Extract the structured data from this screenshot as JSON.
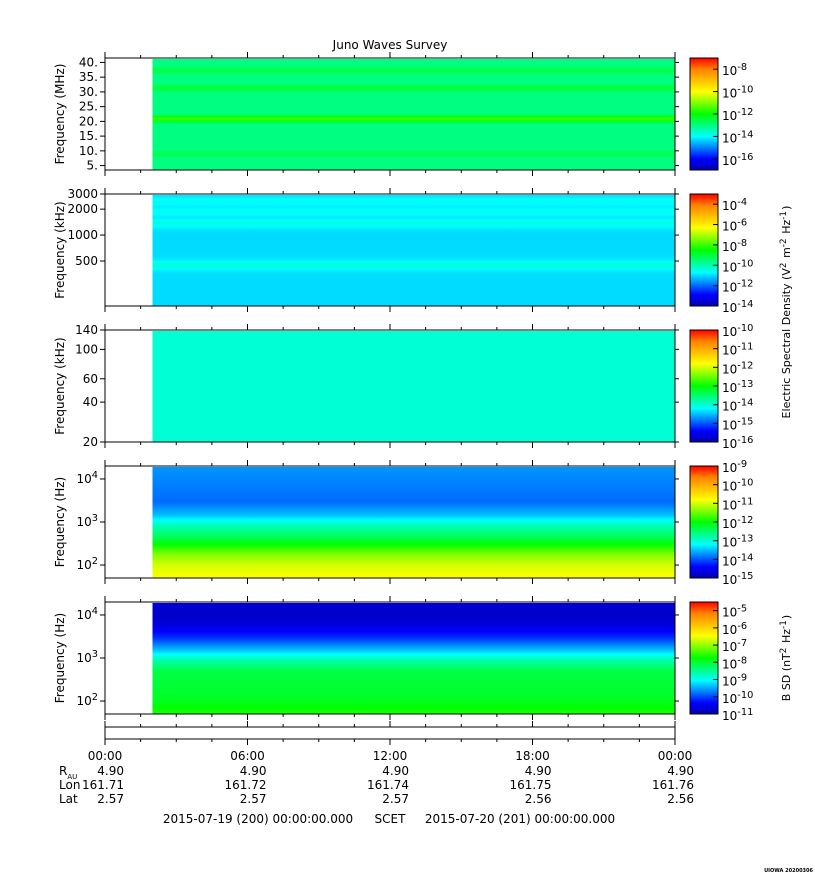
{
  "title": "Juno Waves Survey",
  "colors": {
    "colormap": [
      "#0000b0",
      "#0000ff",
      "#0080ff",
      "#00ffff",
      "#00ff80",
      "#00ff00",
      "#80ff00",
      "#ffff00",
      "#ffc000",
      "#ff8000",
      "#ff0000"
    ]
  },
  "chart_data": [
    {
      "type": "heatmap",
      "name": "panel-1",
      "ylabel": "Frequency (MHz)",
      "yscale": "linear",
      "ylim": [
        3.5,
        41.5
      ],
      "yticks": [
        5,
        10,
        15,
        20,
        25,
        30,
        35,
        40
      ],
      "ytick_labels": [
        "5.",
        "10.",
        "15.",
        "20.",
        "25.",
        "30.",
        "35.",
        "40."
      ],
      "data_start_hours": 2.0,
      "base_level": -13,
      "bands": [
        {
          "y": 21.0,
          "level": -11.5
        },
        {
          "y": 31.5,
          "level": -12.4
        },
        {
          "y": 37.5,
          "level": -12.5
        },
        {
          "y": 9.0,
          "level": -12.6
        }
      ],
      "colorbar": {
        "labels": [
          "10^-8",
          "10^-10",
          "10^-12",
          "10^-14",
          "10^-16"
        ],
        "exponents": [
          -8,
          -10,
          -12,
          -14,
          -16
        ],
        "range": [
          -17,
          -7
        ]
      }
    },
    {
      "type": "heatmap",
      "name": "panel-2",
      "ylabel": "Frequency (kHz)",
      "yscale": "log",
      "ylim": [
        150,
        3000
      ],
      "yticks": [
        500,
        1000,
        2000,
        3000
      ],
      "ytick_labels": [
        "500",
        "1000",
        "2000",
        "3000"
      ],
      "data_start_hours": 2.0,
      "base_level": -11,
      "bands": [
        {
          "y": 450,
          "level": -10.4
        },
        {
          "y": 1400,
          "level": -10.5
        },
        {
          "y": 1900,
          "level": -10.6
        },
        {
          "y": 2500,
          "level": -10.6
        }
      ],
      "colorbar": {
        "labels": [
          "10^-4",
          "10^-6",
          "10^-8",
          "10^-10",
          "10^-12",
          "10^-14"
        ],
        "exponents": [
          -4,
          -6,
          -8,
          -10,
          -12,
          -14
        ],
        "range": [
          -14,
          -3
        ]
      },
      "colorbar_title": "Electric Spectral Density (V^2 m^-2 Hz^-1)"
    },
    {
      "type": "heatmap",
      "name": "panel-3",
      "ylabel": "Frequency (kHz)",
      "yscale": "log",
      "ylim": [
        20,
        140
      ],
      "yticks": [
        20,
        40,
        60,
        100,
        140
      ],
      "ytick_labels": [
        "20",
        "40",
        "60",
        "100",
        "140"
      ],
      "data_start_hours": 2.0,
      "base_level": -14,
      "bands": [],
      "colorbar": {
        "labels": [
          "10^-10",
          "10^-11",
          "10^-12",
          "10^-13",
          "10^-14",
          "10^-15",
          "10^-16"
        ],
        "exponents": [
          -10,
          -11,
          -12,
          -13,
          -14,
          -15,
          -16
        ],
        "range": [
          -16,
          -10
        ]
      }
    },
    {
      "type": "heatmap",
      "name": "panel-4",
      "ylabel": "Frequency (Hz)",
      "yscale": "log",
      "ylim": [
        50,
        20000
      ],
      "yticks": [
        100,
        1000,
        10000
      ],
      "ytick_labels": [
        "10^2",
        "10^3",
        "10^4"
      ],
      "data_start_hours": 2.0,
      "profile": [
        [
          50,
          -10.8
        ],
        [
          100,
          -11.0
        ],
        [
          180,
          -11.4
        ],
        [
          280,
          -11.9
        ],
        [
          450,
          -12.4
        ],
        [
          800,
          -12.8
        ],
        [
          1500,
          -13.5
        ],
        [
          3000,
          -13.9
        ],
        [
          8000,
          -13.8
        ],
        [
          20000,
          -13.7
        ]
      ],
      "colorbar": {
        "labels": [
          "10^-9",
          "10^-10",
          "10^-11",
          "10^-12",
          "10^-13",
          "10^-14",
          "10^-15"
        ],
        "exponents": [
          -9,
          -10,
          -11,
          -12,
          -13,
          -14,
          -15
        ],
        "range": [
          -15,
          -9
        ]
      }
    },
    {
      "type": "heatmap",
      "name": "panel-5",
      "ylabel": "Frequency (Hz)",
      "yscale": "log",
      "ylim": [
        50,
        20000
      ],
      "yticks": [
        100,
        1000,
        10000
      ],
      "ytick_labels": [
        "10^2",
        "10^3",
        "10^4"
      ],
      "data_start_hours": 2.0,
      "profile": [
        [
          50,
          -7.6
        ],
        [
          100,
          -7.9
        ],
        [
          200,
          -8.0
        ],
        [
          500,
          -8.1
        ],
        [
          900,
          -8.6
        ],
        [
          1500,
          -9.3
        ],
        [
          3000,
          -10.1
        ],
        [
          6000,
          -10.6
        ],
        [
          10000,
          -10.8
        ],
        [
          20000,
          -10.7
        ]
      ],
      "colorbar": {
        "labels": [
          "10^-5",
          "10^-6",
          "10^-7",
          "10^-8",
          "10^-9",
          "10^-10",
          "10^-11"
        ],
        "exponents": [
          -5,
          -6,
          -7,
          -8,
          -9,
          -10,
          -11
        ],
        "range": [
          -11,
          -4.5
        ]
      },
      "colorbar_title": "B SD (nT^2 Hz^-1)"
    }
  ],
  "time_axis": {
    "range_hours": [
      0,
      24
    ],
    "ticks_hours": [
      0,
      6,
      12,
      18,
      24
    ],
    "tick_labels": [
      "00:00",
      "06:00",
      "12:00",
      "18:00",
      "00:00"
    ],
    "rows": [
      {
        "label": "R_AU",
        "label_main": "R",
        "label_sub": "AU",
        "values": [
          "4.90",
          "4.90",
          "4.90",
          "4.90",
          "4.90"
        ]
      },
      {
        "label": "Lon",
        "label_main": "Lon",
        "label_sub": "",
        "values": [
          "161.71",
          "161.72",
          "161.74",
          "161.75",
          "161.76"
        ]
      },
      {
        "label": "Lat",
        "label_main": "Lat",
        "label_sub": "",
        "values": [
          "2.57",
          "2.57",
          "2.57",
          "2.56",
          "2.56"
        ]
      }
    ]
  },
  "footer": {
    "start": "2015-07-19 (200) 00:00:00.000",
    "scet": "SCET",
    "end": "2015-07-20 (201) 00:00:00.000"
  },
  "credit": "UIOWA 20200306"
}
